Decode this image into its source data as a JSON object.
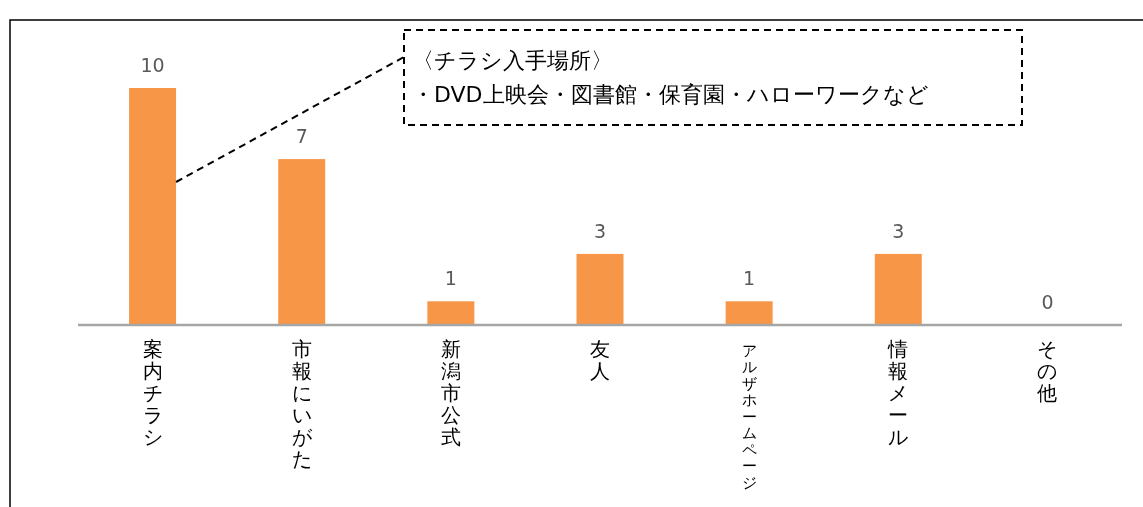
{
  "chart_data": {
    "type": "bar",
    "categories": [
      "案内チラシ",
      "市報にいがた",
      "新潟市公式",
      "友人",
      "アルザホームページ",
      "情報メール",
      "その他"
    ],
    "values": [
      10,
      7,
      1,
      3,
      1,
      3,
      0
    ],
    "color": "#f79646",
    "data_labels": true,
    "annotations": [
      "〈チラシ入手場所〉",
      "・DVD上映会・図書館・保育園・ハローワークなど"
    ]
  }
}
